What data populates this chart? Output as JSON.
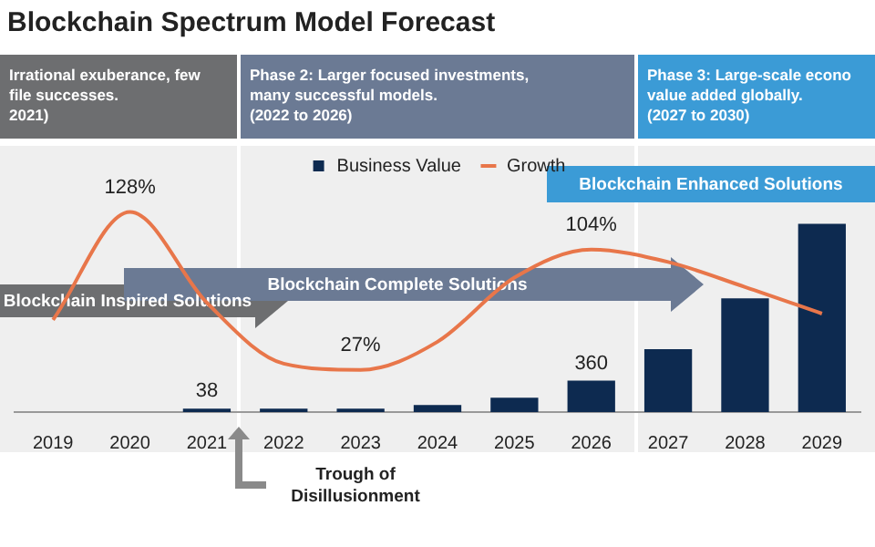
{
  "chart_data": {
    "type": "bar",
    "title": "Blockchain Spectrum Model Forecast",
    "categories": [
      "2019",
      "2020",
      "2021",
      "2022",
      "2023",
      "2024",
      "2025",
      "2026",
      "2027",
      "2028",
      "2029"
    ],
    "series": [
      {
        "name": "Business Value",
        "type": "bar",
        "color": "#0d2a50",
        "values": [
          null,
          null,
          38,
          40,
          40,
          80,
          165,
          360,
          720,
          1300,
          2150
        ],
        "value_labels": [
          null,
          null,
          "38",
          null,
          null,
          null,
          null,
          "360",
          null,
          null,
          null
        ]
      },
      {
        "name": "Growth",
        "type": "line",
        "axis": "y2",
        "color": "#e8764a",
        "values": [
          59,
          128,
          70,
          31,
          27,
          45,
          86,
          104,
          96,
          80,
          63
        ],
        "value_labels": [
          null,
          "128%",
          null,
          null,
          "27%",
          null,
          null,
          "104%",
          null,
          null,
          null
        ]
      }
    ],
    "tick_labels": "x",
    "legend": "top",
    "grid": false,
    "marker": "none",
    "annotations": [
      "Irrational exuberance, few\nfile successes.\n2021)",
      "Phase 2: Larger focused investments,\nmany successful models.\n(2022 to 2026)",
      "Phase 3: Large-scale econo\nvalue added globally.\n(2027 to 2030)",
      "Blockchain Inspired Solutions",
      "Blockchain Complete Solutions",
      "Blockchain Enhanced Solutions",
      "Trough of\nDisillusionment"
    ]
  }
}
